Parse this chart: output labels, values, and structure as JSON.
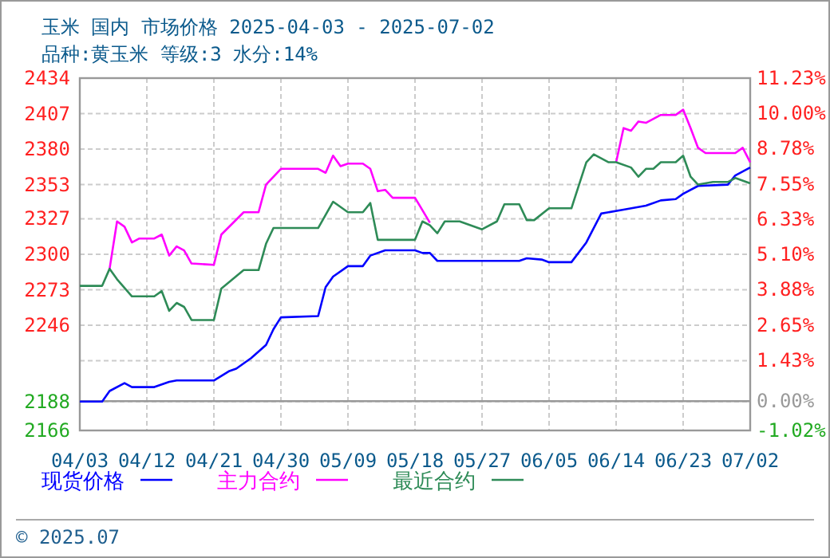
{
  "chart_data": {
    "type": "line",
    "title": "玉米 国内 市场价格 2025-04-03 - 2025-07-02",
    "subtitle": "品种:黄玉米 等级:3 水分:14%",
    "annotations": [
      "© 2025.07"
    ],
    "xlim": [
      "2025-04-03",
      "2025-07-02"
    ],
    "xticks": [
      {
        "value": "2025-04-03",
        "label": "04/03"
      },
      {
        "value": "2025-04-12",
        "label": "04/12"
      },
      {
        "value": "2025-04-21",
        "label": "04/21"
      },
      {
        "value": "2025-04-30",
        "label": "04/30"
      },
      {
        "value": "2025-05-09",
        "label": "05/09"
      },
      {
        "value": "2025-05-18",
        "label": "05/18"
      },
      {
        "value": "2025-05-27",
        "label": "05/27"
      },
      {
        "value": "2025-06-05",
        "label": "06/05"
      },
      {
        "value": "2025-06-14",
        "label": "06/14"
      },
      {
        "value": "2025-06-23",
        "label": "06/23"
      },
      {
        "value": "2025-07-02",
        "label": "07/02"
      }
    ],
    "ylim": [
      2166,
      2434
    ],
    "yticks": [
      2166,
      2188,
      {
        "value": 2219,
        "label": null
      },
      2246,
      2273,
      2300,
      2327,
      2353,
      2380,
      2407,
      2434
    ],
    "y2lim": [
      -1.02,
      11.23
    ],
    "y2ticks": [
      {
        "value": -1.02,
        "label": "-1.02%"
      },
      {
        "value": 0,
        "label": "0.00%"
      },
      {
        "value": 1.43,
        "label": "1.43%"
      },
      {
        "value": 2.65,
        "label": "2.65%"
      },
      {
        "value": 3.88,
        "label": "3.88%"
      },
      {
        "value": 5.1,
        "label": "5.10%"
      },
      {
        "value": 6.33,
        "label": "6.33%"
      },
      {
        "value": 7.55,
        "label": "7.55%"
      },
      {
        "value": 8.78,
        "label": "8.78%"
      },
      {
        "value": 10.0,
        "label": "10.00%"
      },
      {
        "value": 11.23,
        "label": "11.23%"
      }
    ],
    "ref_lines": [
      {
        "axis": "y2",
        "value": 0,
        "color": "#999999",
        "line_style": "solid"
      }
    ],
    "grid": true,
    "legend": "bottom",
    "line_style": "solid",
    "series": [
      {
        "name": "现货价格",
        "color": "#0000ff",
        "x": [
          "2025-04-03",
          "2025-04-06",
          "2025-04-07",
          "2025-04-09",
          "2025-04-10",
          "2025-04-13",
          "2025-04-15",
          "2025-04-16",
          "2025-04-21",
          "2025-04-23",
          "2025-04-24",
          "2025-04-26",
          "2025-04-28",
          "2025-04-29",
          "2025-04-30",
          "2025-05-05",
          "2025-05-06",
          "2025-05-07",
          "2025-05-09",
          "2025-05-11",
          "2025-05-12",
          "2025-05-14",
          "2025-05-18",
          "2025-05-19",
          "2025-05-20",
          "2025-05-21",
          "2025-06-01",
          "2025-06-02",
          "2025-06-04",
          "2025-06-05",
          "2025-06-08",
          "2025-06-10",
          "2025-06-12",
          "2025-06-15",
          "2025-06-18",
          "2025-06-20",
          "2025-06-22",
          "2025-06-23",
          "2025-06-25",
          "2025-06-29",
          "2025-06-30",
          "2025-07-02"
        ],
        "values": [
          2188,
          2188,
          2196,
          2202,
          2199,
          2199,
          2203,
          2204,
          2204,
          2211,
          2213,
          2221,
          2231,
          2243,
          2252,
          2253,
          2275,
          2283,
          2291,
          2291,
          2299,
          2303,
          2303,
          2301,
          2301,
          2295,
          2295,
          2297,
          2296,
          2294,
          2294,
          2309,
          2331,
          2334,
          2337,
          2341,
          2342,
          2346,
          2352,
          2353,
          2360,
          2366
        ]
      },
      {
        "name": "主力合约",
        "color": "#ff00ff",
        "x": [
          "2025-04-07",
          "2025-04-08",
          "2025-04-09",
          "2025-04-10",
          "2025-04-11",
          "2025-04-13",
          "2025-04-14",
          "2025-04-15",
          "2025-04-16",
          "2025-04-17",
          "2025-04-18",
          "2025-04-21",
          "2025-04-22",
          "2025-04-25",
          "2025-04-27",
          "2025-04-28",
          "2025-04-30",
          "2025-05-05",
          "2025-05-06",
          "2025-05-07",
          "2025-05-08",
          "2025-05-09",
          "2025-05-11",
          "2025-05-12",
          "2025-05-13",
          "2025-05-14",
          "2025-05-15",
          "2025-05-18",
          "2025-05-20",
          "2025-06-01",
          "2025-06-14",
          "2025-06-15",
          "2025-06-16",
          "2025-06-17",
          "2025-06-18",
          "2025-06-20",
          "2025-06-22",
          "2025-06-23",
          "2025-06-24",
          "2025-06-25",
          "2025-06-26",
          "2025-06-30",
          "2025-07-01",
          "2025-07-02"
        ],
        "values": [
          2289,
          2325,
          2321,
          2309,
          2312,
          2312,
          2315,
          2299,
          2306,
          2303,
          2293,
          2292,
          2315,
          2332,
          2332,
          2353,
          2365,
          2365,
          2362,
          2375,
          2367,
          2369,
          2369,
          2365,
          2348,
          2349,
          2343,
          2343,
          2324,
          null,
          2370,
          2396,
          2394,
          2401,
          2400,
          2406,
          2406,
          2410,
          2396,
          2381,
          2377,
          2377,
          2381,
          2370
        ]
      },
      {
        "name": "最近合约",
        "color": "#2e8b57",
        "x": [
          "2025-04-03",
          "2025-04-06",
          "2025-04-07",
          "2025-04-08",
          "2025-04-10",
          "2025-04-13",
          "2025-04-14",
          "2025-04-15",
          "2025-04-16",
          "2025-04-17",
          "2025-04-18",
          "2025-04-21",
          "2025-04-22",
          "2025-04-25",
          "2025-04-27",
          "2025-04-28",
          "2025-04-29",
          "2025-05-05",
          "2025-05-07",
          "2025-05-09",
          "2025-05-11",
          "2025-05-12",
          "2025-05-13",
          "2025-05-18",
          "2025-05-19",
          "2025-05-20",
          "2025-05-21",
          "2025-05-22",
          "2025-05-24",
          "2025-05-27",
          "2025-05-29",
          "2025-05-30",
          "2025-06-01",
          "2025-06-02",
          "2025-06-03",
          "2025-06-05",
          "2025-06-08",
          "2025-06-10",
          "2025-06-11",
          "2025-06-13",
          "2025-06-14",
          "2025-06-16",
          "2025-06-17",
          "2025-06-18",
          "2025-06-19",
          "2025-06-20",
          "2025-06-22",
          "2025-06-23",
          "2025-06-24",
          "2025-06-25",
          "2025-06-27",
          "2025-06-29",
          "2025-06-30",
          "2025-07-02"
        ],
        "values": [
          2276,
          2276,
          2289,
          2281,
          2268,
          2268,
          2272,
          2257,
          2263,
          2260,
          2250,
          2250,
          2274,
          2288,
          2288,
          2308,
          2320,
          2320,
          2340,
          2332,
          2332,
          2339,
          2311,
          2311,
          2325,
          2322,
          2316,
          2325,
          2325,
          2319,
          2325,
          2338,
          2338,
          2326,
          2326,
          2335,
          2335,
          2370,
          2376,
          2370,
          2370,
          2366,
          2359,
          2365,
          2365,
          2370,
          2370,
          2375,
          2359,
          2353,
          2355,
          2355,
          2358,
          2354
        ]
      }
    ]
  }
}
